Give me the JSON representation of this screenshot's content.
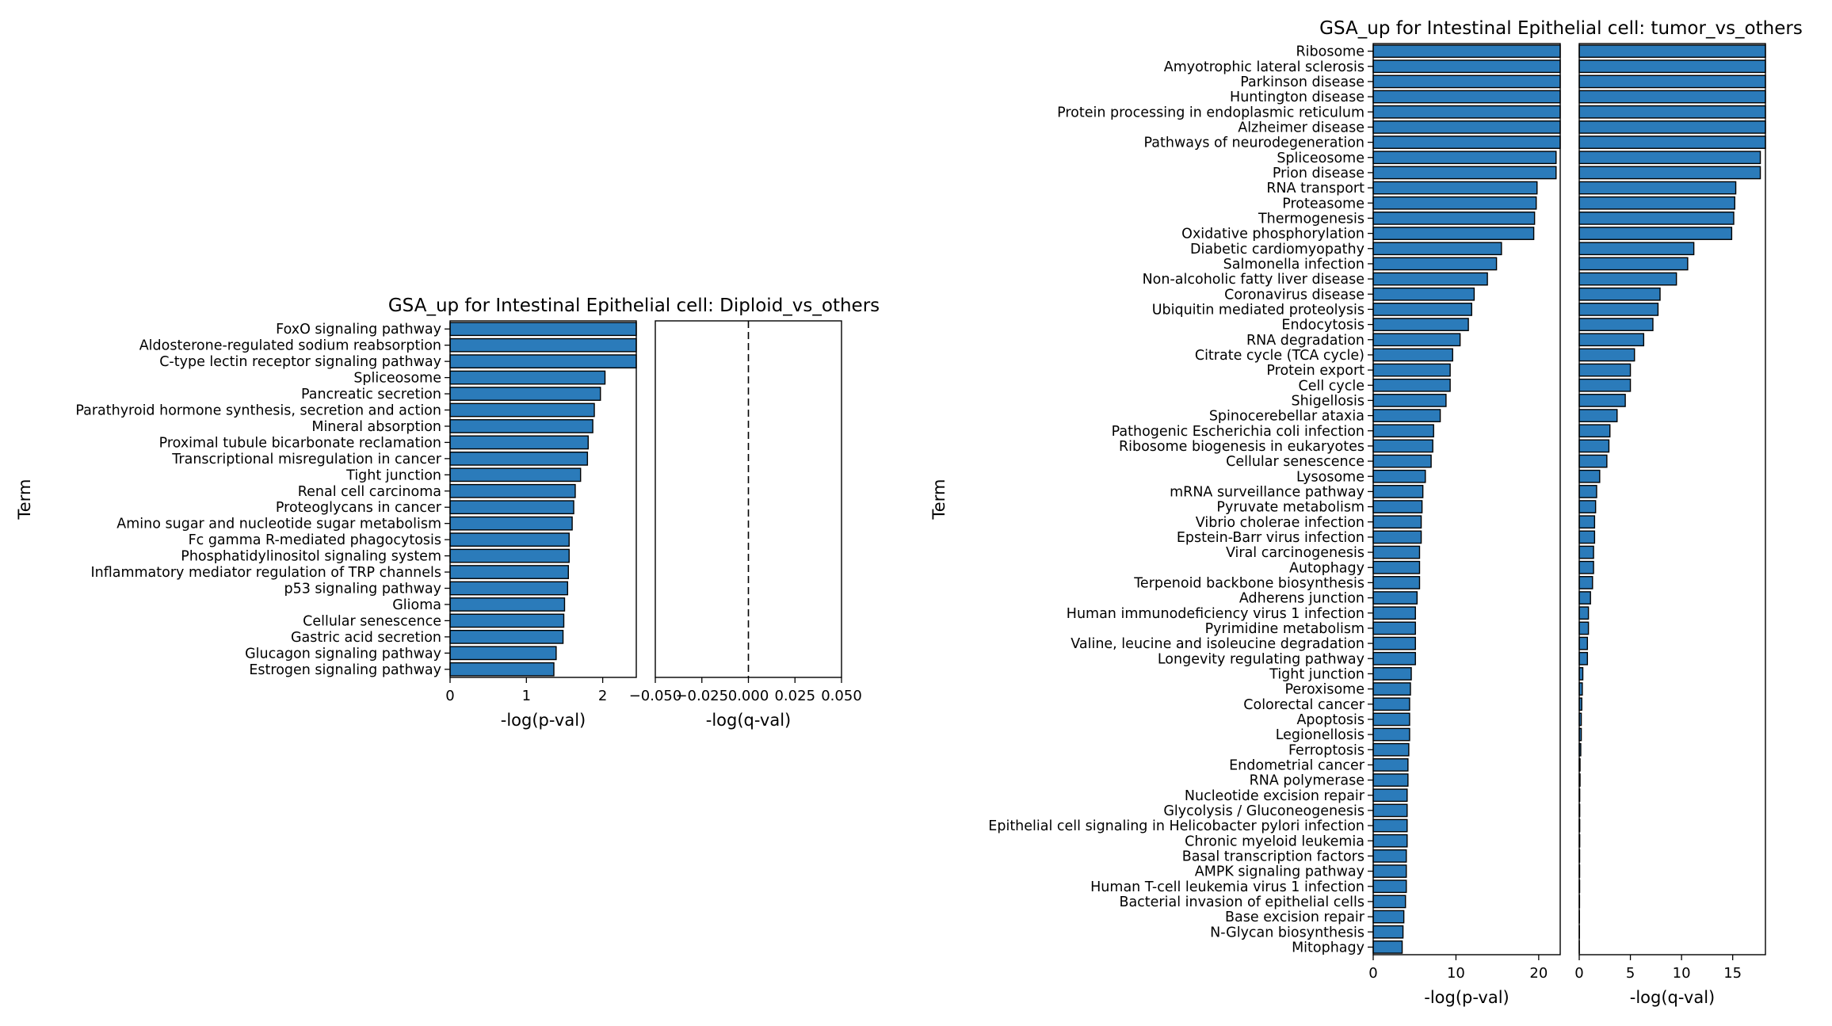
{
  "chart_data": [
    {
      "type": "bar",
      "orientation": "horizontal",
      "title": "GSA_up for Intestinal Epithelial cell: Diploid_vs_others",
      "ylabel": "Term",
      "bar_color": "#2b7bba",
      "terms": [
        "FoxO signaling pathway",
        "Aldosterone-regulated sodium reabsorption",
        "C-type lectin receptor signaling pathway",
        "Spliceosome",
        "Pancreatic secretion",
        "Parathyroid hormone synthesis, secretion and action",
        "Mineral absorption",
        "Proximal tubule bicarbonate reclamation",
        "Transcriptional misregulation in cancer",
        "Tight junction",
        "Renal cell carcinoma",
        "Proteoglycans in cancer",
        "Amino sugar and nucleotide sugar metabolism",
        "Fc gamma R-mediated phagocytosis",
        "Phosphatidylinositol signaling system",
        "Inflammatory mediator regulation of TRP channels",
        "p53 signaling pathway",
        "Glioma",
        "Cellular senescence",
        "Gastric acid secretion",
        "Glucagon signaling pathway",
        "Estrogen signaling pathway"
      ],
      "panels": [
        {
          "xlabel": "-log(p-val)",
          "xlim": [
            0,
            2.44
          ],
          "ticks": [
            0,
            1,
            2
          ],
          "tick_labels": [
            "0",
            "1",
            "2"
          ],
          "values": [
            2.44,
            2.44,
            2.44,
            2.03,
            1.97,
            1.89,
            1.87,
            1.81,
            1.8,
            1.71,
            1.64,
            1.62,
            1.6,
            1.56,
            1.56,
            1.55,
            1.54,
            1.5,
            1.49,
            1.48,
            1.39,
            1.36
          ]
        },
        {
          "xlabel": "-log(q-val)",
          "xlim": [
            -0.05,
            0.05
          ],
          "ticks": [
            -0.05,
            -0.025,
            0,
            0.025,
            0.05
          ],
          "tick_labels": [
            "−0.050",
            "−0.025",
            "0.000",
            "0.025",
            "0.050"
          ],
          "dashed_zero_line": true,
          "values": [
            0,
            0,
            0,
            0,
            0,
            0,
            0,
            0,
            0,
            0,
            0,
            0,
            0,
            0,
            0,
            0,
            0,
            0,
            0,
            0,
            0,
            0
          ]
        }
      ]
    },
    {
      "type": "bar",
      "orientation": "horizontal",
      "title": "GSA_up for Intestinal Epithelial cell: tumor_vs_others",
      "ylabel": "Term",
      "bar_color": "#2b7bba",
      "terms": [
        "Ribosome",
        "Amyotrophic lateral sclerosis",
        "Parkinson disease",
        "Huntington disease",
        "Protein processing in endoplasmic reticulum",
        "Alzheimer disease",
        "Pathways of neurodegeneration",
        "Spliceosome",
        "Prion disease",
        "RNA transport",
        "Proteasome",
        "Thermogenesis",
        "Oxidative phosphorylation",
        "Diabetic cardiomyopathy",
        "Salmonella infection",
        "Non-alcoholic fatty liver disease",
        "Coronavirus disease",
        "Ubiquitin mediated proteolysis",
        "Endocytosis",
        "RNA degradation",
        "Citrate cycle (TCA cycle)",
        "Protein export",
        "Cell cycle",
        "Shigellosis",
        "Spinocerebellar ataxia",
        "Pathogenic Escherichia coli infection",
        "Ribosome biogenesis in eukaryotes",
        "Cellular senescence",
        "Lysosome",
        "mRNA surveillance pathway",
        "Pyruvate metabolism",
        "Vibrio cholerae infection",
        "Epstein-Barr virus infection",
        "Viral carcinogenesis",
        "Autophagy",
        "Terpenoid backbone biosynthesis",
        "Adherens junction",
        "Human immunodeficiency virus 1 infection",
        "Pyrimidine metabolism",
        "Valine, leucine and isoleucine degradation",
        "Longevity regulating pathway",
        "Tight junction",
        "Peroxisome",
        "Colorectal cancer",
        "Apoptosis",
        "Legionellosis",
        "Ferroptosis",
        "Endometrial cancer",
        "RNA polymerase",
        "Nucleotide excision repair",
        "Glycolysis / Gluconeogenesis",
        "Epithelial cell signaling in Helicobacter pylori infection",
        "Chronic myeloid leukemia",
        "Basal transcription factors",
        "AMPK signaling pathway",
        "Human T-cell leukemia virus 1 infection",
        "Bacterial invasion of epithelial cells",
        "Base excision repair",
        "N-Glycan biosynthesis",
        "Mitophagy"
      ],
      "panels": [
        {
          "xlabel": "-log(p-val)",
          "xlim": [
            0,
            22.6
          ],
          "ticks": [
            0,
            10,
            20
          ],
          "tick_labels": [
            "0",
            "10",
            "20"
          ],
          "values": [
            22.6,
            22.6,
            22.6,
            22.6,
            22.6,
            22.6,
            22.6,
            22.1,
            22.1,
            19.8,
            19.7,
            19.5,
            19.4,
            15.5,
            14.9,
            13.8,
            12.2,
            11.9,
            11.5,
            10.5,
            9.6,
            9.3,
            9.3,
            8.8,
            8.1,
            7.3,
            7.2,
            7.0,
            6.3,
            6.0,
            5.9,
            5.8,
            5.8,
            5.6,
            5.6,
            5.6,
            5.3,
            5.1,
            5.1,
            5.1,
            5.1,
            4.6,
            4.5,
            4.4,
            4.4,
            4.4,
            4.3,
            4.2,
            4.2,
            4.1,
            4.1,
            4.1,
            4.1,
            4.0,
            4.0,
            4.0,
            3.9,
            3.7,
            3.6,
            3.5
          ]
        },
        {
          "xlabel": "-log(q-val)",
          "xlim": [
            0,
            18.2
          ],
          "ticks": [
            0,
            5,
            10,
            15
          ],
          "tick_labels": [
            "0",
            "5",
            "10",
            "15"
          ],
          "values": [
            18.2,
            18.2,
            18.2,
            18.2,
            18.2,
            18.2,
            18.2,
            17.7,
            17.7,
            15.3,
            15.2,
            15.1,
            14.9,
            11.2,
            10.6,
            9.5,
            7.9,
            7.7,
            7.2,
            6.3,
            5.4,
            5.0,
            5.0,
            4.5,
            3.7,
            3.0,
            2.9,
            2.7,
            2.0,
            1.7,
            1.6,
            1.5,
            1.5,
            1.4,
            1.4,
            1.3,
            1.1,
            0.9,
            0.9,
            0.8,
            0.8,
            0.35,
            0.3,
            0.25,
            0.2,
            0.2,
            0.15,
            0.08,
            0.08,
            0.05,
            0.05,
            0.05,
            0.05,
            0.04,
            0.04,
            0.04,
            0.03,
            0.02,
            0.02,
            0.01
          ]
        }
      ]
    }
  ]
}
